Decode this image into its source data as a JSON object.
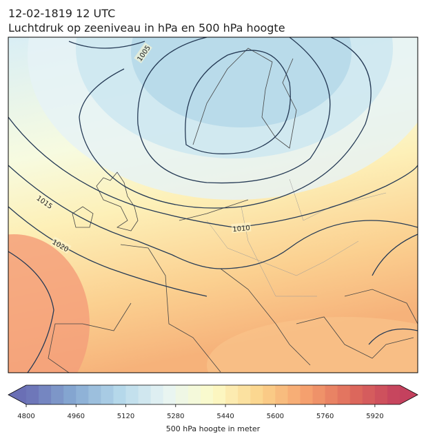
{
  "title": "12-02-1819 12 UTC",
  "subtitle": "Luchtdruk op zeeniveau in hPa en 500 hPa hoogte",
  "isobar_labels": [
    1005,
    1010,
    1015,
    1020
  ],
  "colorbar": {
    "label": "500 hPa hoogte in meter",
    "lim": [
      4800,
      6000
    ],
    "step": 40,
    "ticks": [
      4800,
      4960,
      5120,
      5280,
      5440,
      5600,
      5760,
      5920
    ],
    "colors": [
      "#6a6fb5",
      "#86a9d2",
      "#b5d8ea",
      "#e8f5f4",
      "#fcfbc8",
      "#fbd48c",
      "#f5a06e",
      "#de6a5c",
      "#c4415e"
    ]
  }
}
